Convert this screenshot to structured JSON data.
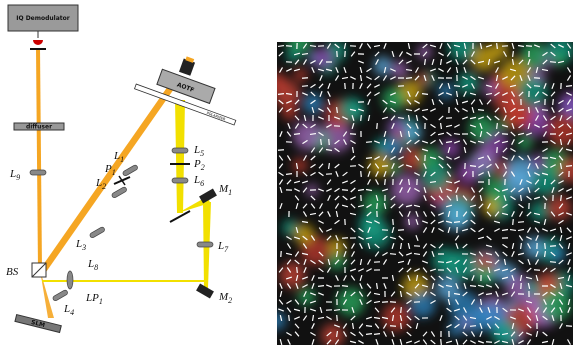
{
  "labels": {
    "iq_demodulator": "IQ Demodulator",
    "diffuser": "diffuser",
    "aotf": "AOTF",
    "polarizer": "POLARIZER",
    "slm": "SLM",
    "bs": "BS",
    "l9": {
      "name": "L",
      "sub": "9"
    },
    "l4": {
      "name": "L",
      "sub": "4"
    },
    "l3": {
      "name": "L",
      "sub": "3"
    },
    "l2": {
      "name": "L",
      "sub": "2"
    },
    "p1": {
      "name": "P",
      "sub": "1"
    },
    "l1": {
      "name": "L",
      "sub": "1"
    },
    "l5": {
      "name": "L",
      "sub": "5"
    },
    "p2": {
      "name": "P",
      "sub": "2"
    },
    "l6": {
      "name": "L",
      "sub": "6"
    },
    "m1": {
      "name": "M",
      "sub": "1"
    },
    "l7": {
      "name": "L",
      "sub": "7"
    },
    "l8": {
      "name": "L",
      "sub": "8"
    },
    "lp1": {
      "name": "LP",
      "sub": "1"
    },
    "m2": {
      "name": "M",
      "sub": "2"
    }
  }
}
